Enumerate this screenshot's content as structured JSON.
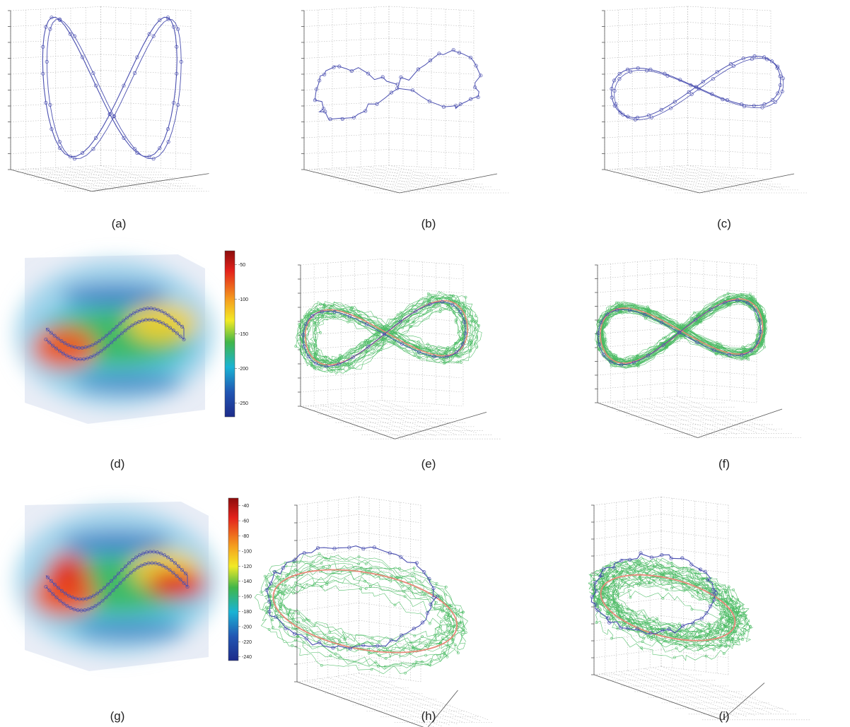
{
  "chart_data": [
    {
      "id": "a",
      "type": "line",
      "caption": "(a)",
      "series": [
        {
          "color": "#4a4fb0",
          "marker": "circle"
        }
      ]
    },
    {
      "id": "b",
      "type": "line",
      "caption": "(b)",
      "series": [
        {
          "color": "#4a4fb0",
          "marker": "circle"
        }
      ]
    },
    {
      "id": "c",
      "type": "line",
      "caption": "(c)",
      "series": [
        {
          "color": "#4a4fb0",
          "marker": "circle"
        }
      ]
    },
    {
      "id": "d",
      "type": "heatmap",
      "caption": "(d)",
      "colorbar": {
        "ticks": [
          "-50",
          "-100",
          "-150",
          "-200",
          "-250"
        ],
        "range": [
          -270,
          -30
        ]
      },
      "series": [
        {
          "color": "#4a4fb0",
          "marker": "circle"
        }
      ]
    },
    {
      "id": "e",
      "type": "line",
      "caption": "(e)",
      "series": [
        {
          "color": "#4a4fb0",
          "marker": "circle"
        },
        {
          "color": "#e8897a"
        },
        {
          "color": "#2db04a",
          "marker": "circle"
        }
      ]
    },
    {
      "id": "f",
      "type": "line",
      "caption": "(f)",
      "series": [
        {
          "color": "#4a4fb0",
          "marker": "circle"
        },
        {
          "color": "#e8897a"
        },
        {
          "color": "#2db04a",
          "marker": "circle"
        }
      ]
    },
    {
      "id": "g",
      "type": "heatmap",
      "caption": "(g)",
      "colorbar": {
        "ticks": [
          "-40",
          "-60",
          "-80",
          "-100",
          "-120",
          "-140",
          "-160",
          "-180",
          "-200",
          "-220",
          "-240"
        ],
        "range": [
          -245,
          -30
        ]
      },
      "series": [
        {
          "color": "#4a4fb0",
          "marker": "circle"
        }
      ]
    },
    {
      "id": "h",
      "type": "line",
      "caption": "(h)",
      "series": [
        {
          "color": "#4a4fb0",
          "marker": "circle"
        },
        {
          "color": "#e8897a"
        },
        {
          "color": "#2db04a",
          "marker": "circle"
        }
      ]
    },
    {
      "id": "i",
      "type": "line",
      "caption": "(i)",
      "series": [
        {
          "color": "#4a4fb0",
          "marker": "circle"
        },
        {
          "color": "#e8897a"
        },
        {
          "color": "#2db04a",
          "marker": "circle"
        }
      ]
    }
  ]
}
